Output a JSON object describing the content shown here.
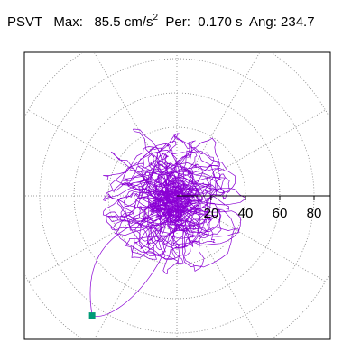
{
  "header": {
    "type_label": "PSVT",
    "max_label": "Max:",
    "max_value": "85.5",
    "max_unit": "cm/s",
    "max_unit_exp": "2",
    "per_label": "Per:",
    "per_value": "0.170",
    "per_unit": "s",
    "ang_label": "Ang:",
    "ang_value": "234.7"
  },
  "chart_data": {
    "type": "scatter",
    "title": "PSVT  Max: 85.5 cm/s2  Per: 0.170 s  Ang: 234.7",
    "radial_axis": {
      "range": [
        0,
        100
      ],
      "rings": [
        20,
        40,
        60,
        80,
        100
      ],
      "tick_labels": [
        "40",
        "60",
        "80"
      ],
      "partially_hidden_label": "20"
    },
    "angular_grid_deg": [
      0,
      30,
      60,
      90,
      120,
      150,
      180,
      210,
      240,
      270,
      300,
      330
    ],
    "grid": true,
    "grid_style": "dotted",
    "trace_color": "#8a00d4",
    "peak_marker": {
      "r": 85.5,
      "angle_deg": 234.7,
      "color": "#009b77"
    },
    "trace_extents": {
      "x": [
        -60,
        52
      ],
      "y": [
        -70,
        58
      ]
    }
  }
}
